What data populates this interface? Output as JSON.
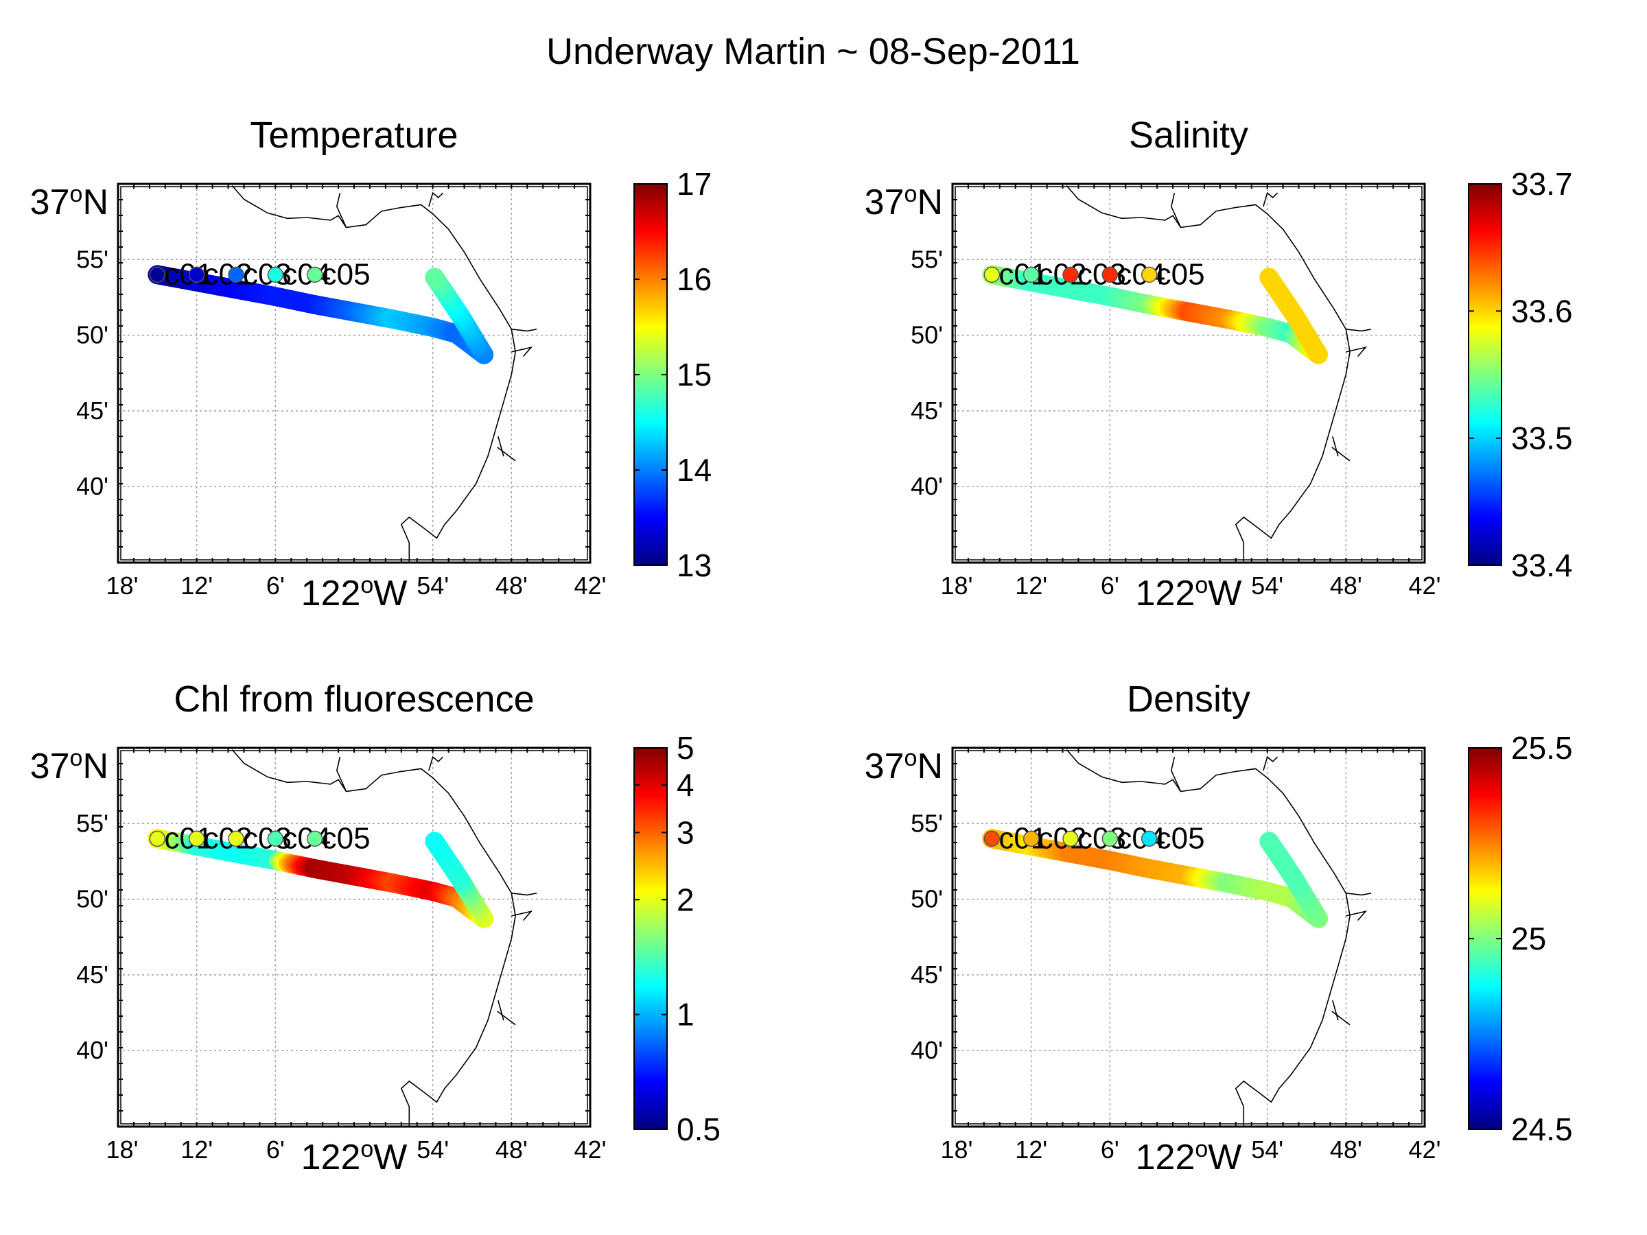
{
  "figure": {
    "title": "Underway Martin ~ 08-Sep-2011"
  },
  "axes_labels": {
    "xtick_labels": [
      "18'",
      "12'",
      "6'",
      "54'",
      "48'",
      "42'"
    ],
    "xlabel": "122",
    "xlabel_sup": "o",
    "xlabel_suffix": "W",
    "ytick_labels": [
      "55'",
      "50'",
      "45'",
      "40'"
    ],
    "ylabel": "37",
    "ylabel_sup": "o",
    "ylabel_suffix": "N"
  },
  "stations": [
    "c01",
    "c02",
    "c03",
    "c04",
    "c05"
  ],
  "chart_data": [
    {
      "type": "scatter",
      "title": "Temperature",
      "xlim": [
        -122.3,
        -121.7
      ],
      "ylim": [
        36.583,
        37.0
      ],
      "xticks": [
        -122.3,
        -122.2,
        -122.1,
        -121.9,
        -121.8,
        -121.7
      ],
      "yticks": [
        36.9167,
        36.8333,
        36.75,
        36.6667
      ],
      "colorbar": {
        "min": 13,
        "max": 17,
        "scale": "linear",
        "ticks": [
          13,
          14,
          15,
          16,
          17
        ],
        "tick_labels": [
          "13",
          "14",
          "15",
          "16",
          "17"
        ]
      },
      "station_values": [
        13.1,
        13.3,
        13.9,
        14.6,
        14.9
      ],
      "track": [
        {
          "x": -122.25,
          "y": 36.9,
          "v": 13.1
        },
        {
          "x": -122.2,
          "y": 36.892,
          "v": 13.3
        },
        {
          "x": -122.15,
          "y": 36.884,
          "v": 13.5
        },
        {
          "x": -122.1,
          "y": 36.876,
          "v": 13.6
        },
        {
          "x": -122.05,
          "y": 36.867,
          "v": 13.6
        },
        {
          "x": -122.0,
          "y": 36.859,
          "v": 13.9
        },
        {
          "x": -121.95,
          "y": 36.851,
          "v": 14.3
        },
        {
          "x": -121.9,
          "y": 36.842,
          "v": 14.1
        },
        {
          "x": -121.87,
          "y": 36.835,
          "v": 13.9
        },
        {
          "x": -121.835,
          "y": 36.812,
          "v": 14.0
        },
        {
          "x": -121.865,
          "y": 36.855,
          "v": 14.4
        },
        {
          "x": -121.9,
          "y": 36.9,
          "v": 14.9
        }
      ]
    },
    {
      "type": "scatter",
      "title": "Salinity",
      "xlim": [
        -122.3,
        -121.7
      ],
      "ylim": [
        36.583,
        37.0
      ],
      "xticks": [
        -122.3,
        -122.2,
        -122.1,
        -121.9,
        -121.8,
        -121.7
      ],
      "yticks": [
        36.9167,
        36.8333,
        36.75,
        36.6667
      ],
      "colorbar": {
        "min": 33.4,
        "max": 33.7,
        "scale": "linear",
        "ticks": [
          33.4,
          33.5,
          33.6,
          33.7
        ],
        "tick_labels": [
          "33.4",
          "33.5",
          "33.6",
          "33.7"
        ]
      },
      "station_values": [
        33.58,
        33.54,
        33.65,
        33.65,
        33.6
      ],
      "track": [
        {
          "x": -122.25,
          "y": 36.9,
          "v": 33.56
        },
        {
          "x": -122.2,
          "y": 36.892,
          "v": 33.53
        },
        {
          "x": -122.15,
          "y": 36.884,
          "v": 33.53
        },
        {
          "x": -122.1,
          "y": 36.876,
          "v": 33.53
        },
        {
          "x": -122.05,
          "y": 36.867,
          "v": 33.55
        },
        {
          "x": -122.0,
          "y": 36.859,
          "v": 33.64
        },
        {
          "x": -121.95,
          "y": 36.851,
          "v": 33.62
        },
        {
          "x": -121.9,
          "y": 36.842,
          "v": 33.55
        },
        {
          "x": -121.87,
          "y": 36.835,
          "v": 33.53
        },
        {
          "x": -121.835,
          "y": 36.812,
          "v": 33.6
        },
        {
          "x": -121.865,
          "y": 36.855,
          "v": 33.6
        },
        {
          "x": -121.9,
          "y": 36.9,
          "v": 33.6
        }
      ]
    },
    {
      "type": "scatter",
      "title": "Chl from fluorescence",
      "xlim": [
        -122.3,
        -121.7
      ],
      "ylim": [
        36.583,
        37.0
      ],
      "xticks": [
        -122.3,
        -122.2,
        -122.1,
        -121.9,
        -121.8,
        -121.7
      ],
      "yticks": [
        36.9167,
        36.8333,
        36.75,
        36.6667
      ],
      "colorbar": {
        "min": 0.5,
        "max": 5,
        "scale": "log",
        "ticks": [
          0.5,
          1,
          2,
          3,
          4,
          5
        ],
        "tick_labels": [
          "0.5",
          "1",
          "2",
          "3",
          "4",
          "5"
        ]
      },
      "station_values": [
        2.0,
        2.0,
        2.0,
        1.4,
        1.5
      ],
      "track": [
        {
          "x": -122.25,
          "y": 36.9,
          "v": 2.2
        },
        {
          "x": -122.2,
          "y": 36.892,
          "v": 1.3
        },
        {
          "x": -122.15,
          "y": 36.884,
          "v": 1.2
        },
        {
          "x": -122.1,
          "y": 36.876,
          "v": 1.3
        },
        {
          "x": -122.05,
          "y": 36.867,
          "v": 4.6
        },
        {
          "x": -122.0,
          "y": 36.859,
          "v": 4.3
        },
        {
          "x": -121.95,
          "y": 36.851,
          "v": 3.2
        },
        {
          "x": -121.9,
          "y": 36.842,
          "v": 4.0
        },
        {
          "x": -121.87,
          "y": 36.835,
          "v": 3.0
        },
        {
          "x": -121.835,
          "y": 36.812,
          "v": 2.0
        },
        {
          "x": -121.865,
          "y": 36.855,
          "v": 1.3
        },
        {
          "x": -121.9,
          "y": 36.9,
          "v": 1.2
        }
      ]
    },
    {
      "type": "scatter",
      "title": "Density",
      "xlim": [
        -122.3,
        -121.7
      ],
      "ylim": [
        36.583,
        37.0
      ],
      "xticks": [
        -122.3,
        -122.2,
        -122.1,
        -121.9,
        -121.8,
        -121.7
      ],
      "yticks": [
        36.9167,
        36.8333,
        36.75,
        36.6667
      ],
      "colorbar": {
        "min": 24.5,
        "max": 25.5,
        "scale": "linear",
        "ticks": [
          24.5,
          25,
          25.5
        ],
        "tick_labels": [
          "24.5",
          "25",
          "25.5"
        ]
      },
      "station_values": [
        25.3,
        25.2,
        25.1,
        25.0,
        24.85
      ],
      "track": [
        {
          "x": -122.25,
          "y": 36.9,
          "v": 25.2
        },
        {
          "x": -122.2,
          "y": 36.892,
          "v": 25.15
        },
        {
          "x": -122.15,
          "y": 36.884,
          "v": 25.25
        },
        {
          "x": -122.1,
          "y": 36.876,
          "v": 25.25
        },
        {
          "x": -122.05,
          "y": 36.867,
          "v": 25.22
        },
        {
          "x": -122.0,
          "y": 36.859,
          "v": 25.2
        },
        {
          "x": -121.95,
          "y": 36.851,
          "v": 25.0
        },
        {
          "x": -121.9,
          "y": 36.842,
          "v": 25.05
        },
        {
          "x": -121.87,
          "y": 36.835,
          "v": 25.05
        },
        {
          "x": -121.835,
          "y": 36.812,
          "v": 25.0
        },
        {
          "x": -121.865,
          "y": 36.855,
          "v": 24.95
        },
        {
          "x": -121.9,
          "y": 36.9,
          "v": 24.95
        }
      ]
    }
  ]
}
